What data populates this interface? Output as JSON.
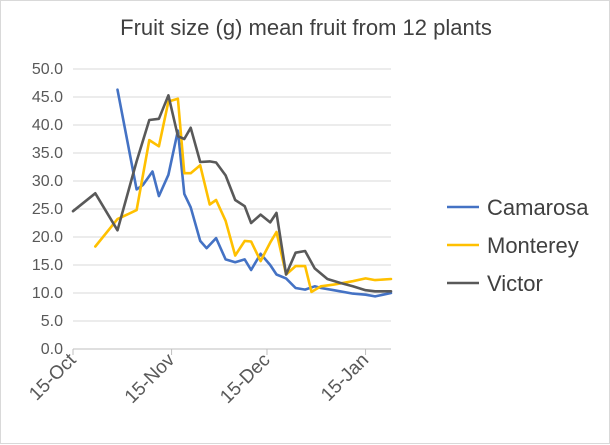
{
  "chart_data": {
    "type": "line",
    "title": "Fruit size (g) mean fruit from 12 plants",
    "xlabel": "",
    "ylabel": "",
    "ylim": [
      0,
      50
    ],
    "y_ticks": [
      "0.0",
      "5.0",
      "10.0",
      "15.0",
      "20.0",
      "25.0",
      "30.0",
      "35.0",
      "40.0",
      "45.0",
      "50.0"
    ],
    "x_ticks": [
      {
        "label": "15-Oct",
        "day": 0
      },
      {
        "label": "15-Nov",
        "day": 31
      },
      {
        "label": "15-Dec",
        "day": 61
      },
      {
        "label": "15-Jan",
        "day": 92
      }
    ],
    "x_range_days": [
      0,
      100
    ],
    "grid": true,
    "legend_position": "right",
    "series": [
      {
        "name": "Camarosa",
        "color": "#4472c4",
        "points": [
          [
            14,
            46.3
          ],
          [
            20,
            28.5
          ],
          [
            22,
            29.3
          ],
          [
            25,
            31.7
          ],
          [
            27,
            27.3
          ],
          [
            30,
            31.1
          ],
          [
            33,
            39.0
          ],
          [
            35,
            27.7
          ],
          [
            37,
            25.3
          ],
          [
            40,
            19.3
          ],
          [
            42,
            18.0
          ],
          [
            45,
            19.8
          ],
          [
            48,
            16.0
          ],
          [
            51,
            15.5
          ],
          [
            54,
            16.0
          ],
          [
            56,
            14.1
          ],
          [
            59,
            17.0
          ],
          [
            62,
            15.0
          ],
          [
            64,
            13.3
          ],
          [
            67,
            12.6
          ],
          [
            70,
            10.9
          ],
          [
            73,
            10.6
          ],
          [
            76,
            11.2
          ],
          [
            78,
            10.9
          ],
          [
            82,
            10.5
          ],
          [
            88,
            9.9
          ],
          [
            92,
            9.7
          ],
          [
            95,
            9.4
          ],
          [
            100,
            10.0
          ]
        ]
      },
      {
        "name": "Monterey",
        "color": "#ffc000",
        "points": [
          [
            7,
            18.3
          ],
          [
            14,
            23.2
          ],
          [
            17,
            24.0
          ],
          [
            20,
            24.8
          ],
          [
            24,
            37.3
          ],
          [
            27,
            36.2
          ],
          [
            30,
            44.2
          ],
          [
            33,
            44.7
          ],
          [
            35,
            31.4
          ],
          [
            37,
            31.4
          ],
          [
            40,
            32.8
          ],
          [
            43,
            25.8
          ],
          [
            45,
            26.6
          ],
          [
            48,
            22.9
          ],
          [
            51,
            16.7
          ],
          [
            54,
            19.3
          ],
          [
            56,
            19.2
          ],
          [
            59,
            15.7
          ],
          [
            62,
            19.0
          ],
          [
            64,
            20.9
          ],
          [
            67,
            13.3
          ],
          [
            70,
            14.8
          ],
          [
            73,
            14.8
          ],
          [
            75,
            10.2
          ],
          [
            78,
            11.2
          ],
          [
            82,
            11.5
          ],
          [
            88,
            12.1
          ],
          [
            92,
            12.6
          ],
          [
            95,
            12.3
          ],
          [
            100,
            12.5
          ]
        ]
      },
      {
        "name": "Victor",
        "color": "#595959",
        "points": [
          [
            0,
            24.6
          ],
          [
            7,
            27.8
          ],
          [
            14,
            21.2
          ],
          [
            20,
            33.5
          ],
          [
            24,
            40.9
          ],
          [
            27,
            41.1
          ],
          [
            30,
            45.3
          ],
          [
            33,
            38.0
          ],
          [
            35,
            37.5
          ],
          [
            37,
            39.5
          ],
          [
            40,
            33.4
          ],
          [
            43,
            33.5
          ],
          [
            45,
            33.3
          ],
          [
            48,
            31.0
          ],
          [
            51,
            26.6
          ],
          [
            54,
            25.5
          ],
          [
            56,
            22.5
          ],
          [
            59,
            24.0
          ],
          [
            62,
            22.6
          ],
          [
            64,
            24.3
          ],
          [
            67,
            13.3
          ],
          [
            70,
            17.2
          ],
          [
            73,
            17.5
          ],
          [
            76,
            14.4
          ],
          [
            80,
            12.5
          ],
          [
            84,
            11.8
          ],
          [
            88,
            11.2
          ],
          [
            92,
            10.5
          ],
          [
            95,
            10.3
          ],
          [
            100,
            10.3
          ]
        ]
      }
    ]
  }
}
